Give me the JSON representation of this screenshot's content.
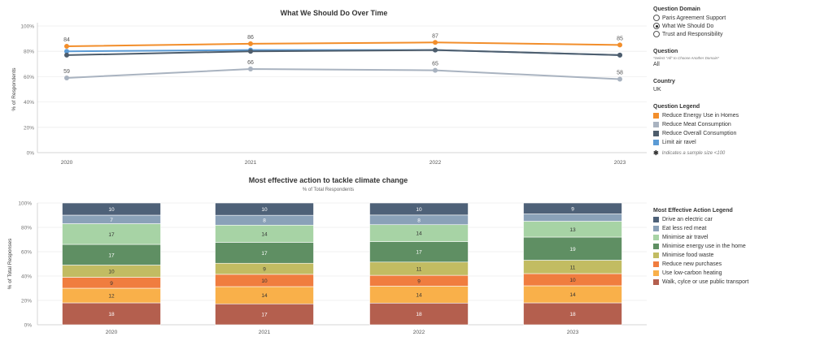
{
  "controls": {
    "domain_title": "Question Domain",
    "domain_options": [
      {
        "label": "Paris Agreement Support",
        "selected": false
      },
      {
        "label": "What We Should Do",
        "selected": true
      },
      {
        "label": "Trust and Responsibility",
        "selected": false
      }
    ],
    "question_title": "Question",
    "question_note": "*Select \"All\" to Choose Another Domain*",
    "question_value": "All",
    "country_title": "Country",
    "country_value": "UK",
    "question_legend_title": "Question Legend",
    "question_legend": [
      {
        "label": "Reduce Energy Use in Homes",
        "color": "#f28e2b"
      },
      {
        "label": "Reduce Meat Consumption",
        "color": "#a9b3c0"
      },
      {
        "label": "Reduce Overall Consumption",
        "color": "#4e5d6c"
      },
      {
        "label": "Limit air ravel",
        "color": "#5b9bd5"
      }
    ],
    "sample_note": "Indicates a sample size <100",
    "sample_note_icon": "asterisk-icon",
    "action_legend_title": "Most Effective Action Legend",
    "action_legend": [
      {
        "label": "Drive an electric car",
        "color": "#4e6178"
      },
      {
        "label": "Eat less red meat",
        "color": "#8aa1b8"
      },
      {
        "label": "Minimise air travel",
        "color": "#a7d3a5"
      },
      {
        "label": "Minimise energy use in the home",
        "color": "#5f8f63"
      },
      {
        "label": "Minimise food waste",
        "color": "#c2bc62"
      },
      {
        "label": "Reduce new purchases",
        "color": "#f07d3f"
      },
      {
        "label": "Use low-carbon heating",
        "color": "#f9b04a"
      },
      {
        "label": "Walk, cylce or use public transport",
        "color": "#b45f4e"
      }
    ]
  },
  "chart_data": [
    {
      "type": "line",
      "title": "What We Should Do Over Time",
      "ylabel": "% of Respondents",
      "x": [
        "2020",
        "2021",
        "2022",
        "2023"
      ],
      "ylim": [
        0,
        100
      ],
      "yticks": [
        "0%",
        "20%",
        "40%",
        "60%",
        "80%",
        "100%"
      ],
      "grid": true,
      "series": [
        {
          "name": "Reduce Energy Use in Homes",
          "color": "#f28e2b",
          "values": [
            84,
            86,
            87,
            85
          ],
          "labels": [
            "84",
            "86",
            "87",
            "85"
          ]
        },
        {
          "name": "Limit air ravel",
          "color": "#5b9bd5",
          "values": [
            80,
            81,
            81,
            77
          ],
          "labels": [
            "",
            "",
            "",
            ""
          ]
        },
        {
          "name": "Reduce Overall Consumption",
          "color": "#4e5d6c",
          "values": [
            77,
            80,
            81,
            77
          ],
          "labels": [
            "",
            "",
            "",
            ""
          ]
        },
        {
          "name": "Reduce Meat Consumption",
          "color": "#a9b3c0",
          "values": [
            59,
            66,
            65,
            58
          ],
          "labels": [
            "59",
            "66",
            "65",
            "58"
          ]
        }
      ]
    },
    {
      "type": "bar",
      "stacked": true,
      "title": "Most effective action to tackle climate change",
      "subtitle": "% of Total Respondents",
      "ylabel": "% of Total Responses",
      "categories": [
        "2020",
        "2021",
        "2022",
        "2023"
      ],
      "ylim": [
        0,
        100
      ],
      "yticks": [
        "0%",
        "20%",
        "40%",
        "60%",
        "80%",
        "100%"
      ],
      "series": [
        {
          "name": "Walk, cylce or use public transport",
          "color": "#b45f4e",
          "values": [
            18,
            17,
            18,
            18
          ]
        },
        {
          "name": "Use low-carbon heating",
          "color": "#f9b04a",
          "values": [
            12,
            14,
            14,
            14
          ]
        },
        {
          "name": "Reduce new purchases",
          "color": "#f07d3f",
          "values": [
            9,
            10,
            9,
            10
          ]
        },
        {
          "name": "Minimise food waste",
          "color": "#c2bc62",
          "values": [
            10,
            9,
            11,
            11
          ]
        },
        {
          "name": "Minimise energy use in the home",
          "color": "#5f8f63",
          "values": [
            17,
            17,
            17,
            19
          ]
        },
        {
          "name": "Minimise air travel",
          "color": "#a7d3a5",
          "values": [
            17,
            14,
            14,
            13
          ]
        },
        {
          "name": "Eat less red meat",
          "color": "#8aa1b8",
          "values": [
            7,
            8,
            8,
            6
          ]
        },
        {
          "name": "Drive an electric car",
          "color": "#4e6178",
          "values": [
            10,
            10,
            10,
            9
          ]
        }
      ],
      "hidden_labels": [
        [
          3,
          6
        ]
      ]
    }
  ]
}
